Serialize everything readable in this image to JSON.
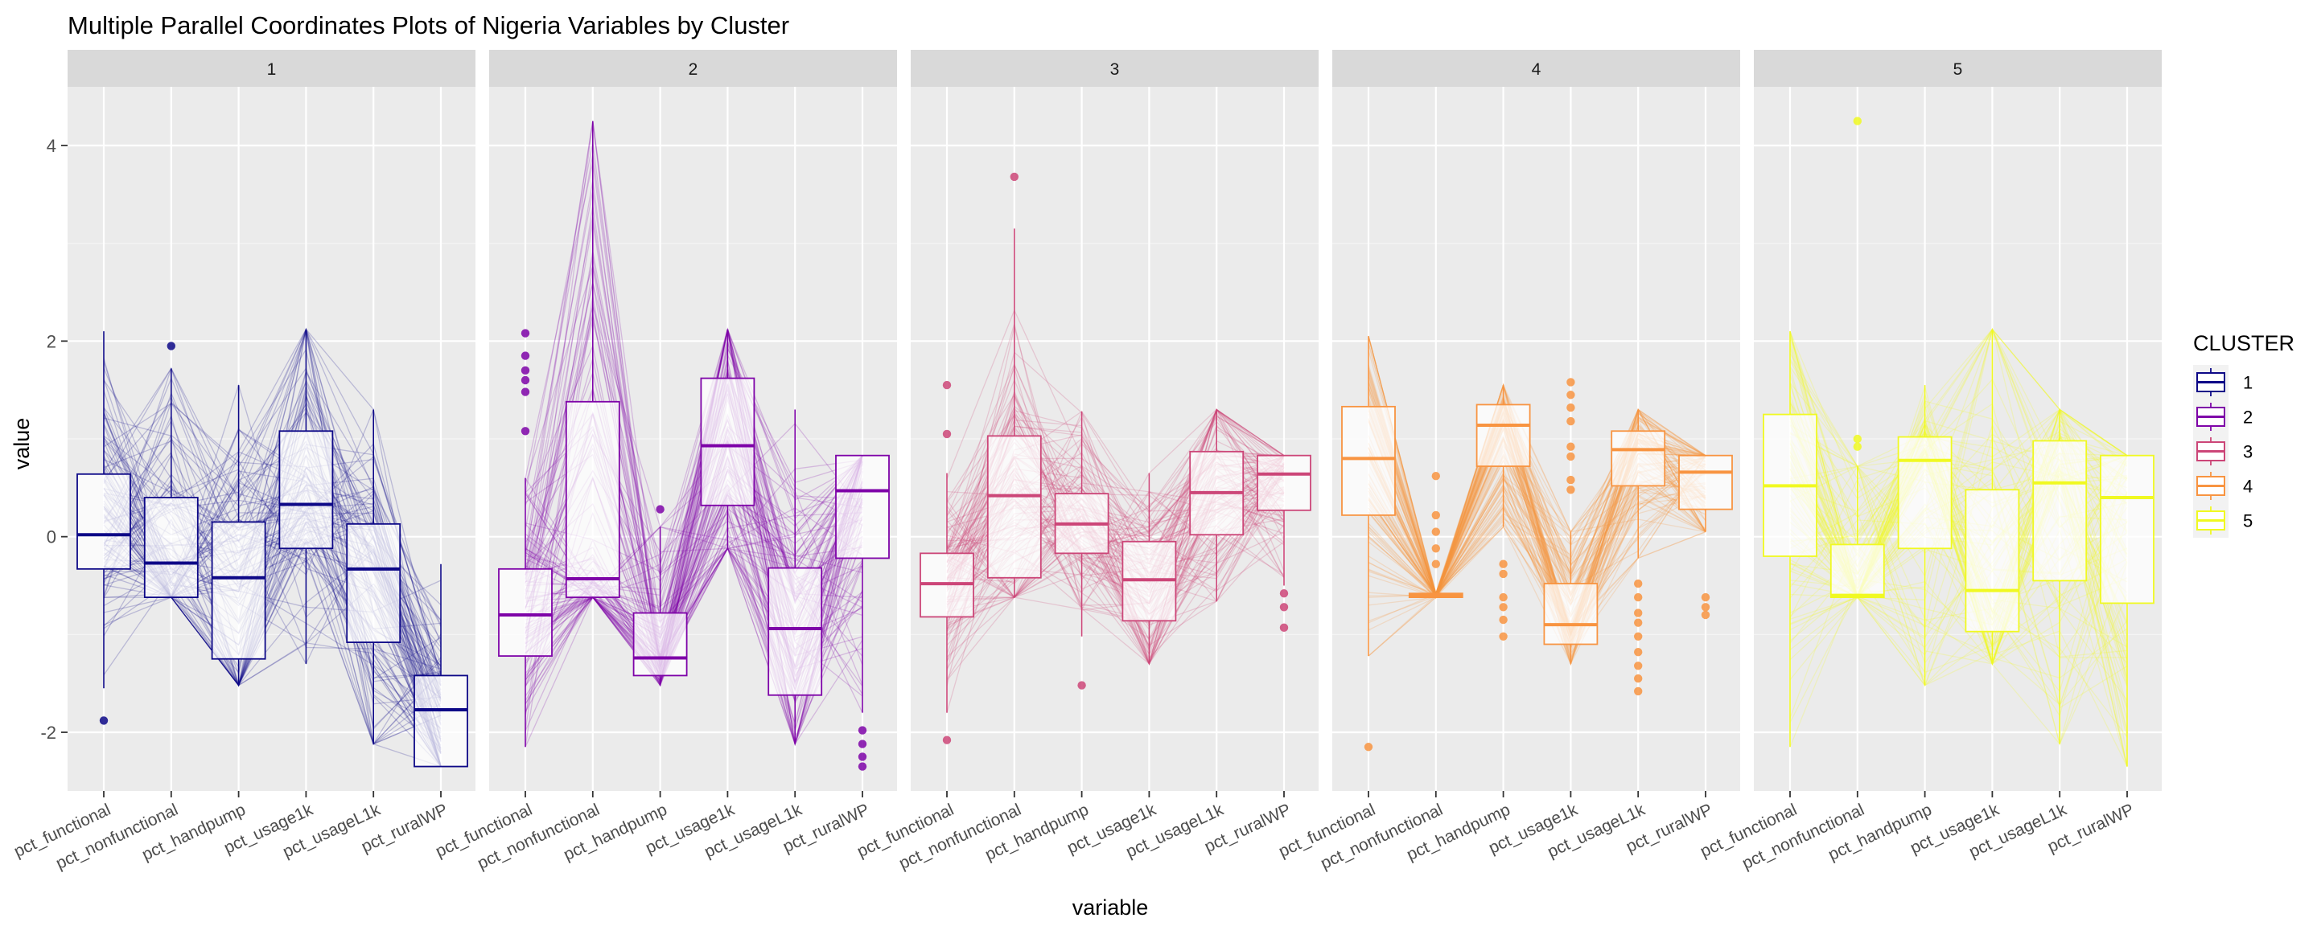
{
  "chart_data": {
    "type": "parallel-coordinates",
    "title": "Multiple Parallel Coordinates Plots of Nigeria Variables by Cluster",
    "xlabel": "variable",
    "ylabel": "value",
    "ylim": [
      -2.6,
      4.6
    ],
    "yticks": [
      -2,
      0,
      2,
      4
    ],
    "ytick_labels": [
      "-2",
      "0",
      "2",
      "4"
    ],
    "grid": true,
    "legend": {
      "title": "CLUSTER",
      "position": "right",
      "entries": [
        "1",
        "2",
        "3",
        "4",
        "5"
      ]
    },
    "variables": [
      "pct_functional",
      "pct_nonfunctional",
      "pct_handpump",
      "pct_usage1k",
      "pct_usageL1k",
      "pct_ruralWP"
    ],
    "facets": [
      {
        "label": "1",
        "color": "#0D0887",
        "boxes": [
          {
            "q1": -0.33,
            "median": 0.02,
            "q3": 0.64,
            "lo": -1.55,
            "hi": 2.1
          },
          {
            "q1": -0.62,
            "median": -0.27,
            "q3": 0.4,
            "lo": -0.62,
            "hi": 1.72
          },
          {
            "q1": -1.25,
            "median": -0.42,
            "q3": 0.15,
            "lo": -1.52,
            "hi": 1.55
          },
          {
            "q1": -0.12,
            "median": 0.33,
            "q3": 1.08,
            "lo": -1.3,
            "hi": 2.12
          },
          {
            "q1": -1.08,
            "median": -0.33,
            "q3": 0.13,
            "lo": -2.12,
            "hi": 1.3
          },
          {
            "q1": -2.35,
            "median": -1.77,
            "q3": -1.42,
            "lo": -2.35,
            "hi": -0.28
          }
        ],
        "outliers": [
          [
            0,
            -1.88
          ],
          [
            1,
            1.95
          ]
        ]
      },
      {
        "label": "2",
        "color": "#7E03A8",
        "boxes": [
          {
            "q1": -1.22,
            "median": -0.8,
            "q3": -0.33,
            "lo": -2.15,
            "hi": 0.6
          },
          {
            "q1": -0.62,
            "median": -0.43,
            "q3": 1.38,
            "lo": -0.62,
            "hi": 4.25
          },
          {
            "q1": -1.42,
            "median": -1.24,
            "q3": -0.78,
            "lo": -1.52,
            "hi": 0.1
          },
          {
            "q1": 0.32,
            "median": 0.93,
            "q3": 1.62,
            "lo": -0.12,
            "hi": 2.12
          },
          {
            "q1": -1.62,
            "median": -0.94,
            "q3": -0.32,
            "lo": -2.12,
            "hi": 1.3
          },
          {
            "q1": -0.22,
            "median": 0.47,
            "q3": 0.83,
            "lo": -1.8,
            "hi": 0.83
          }
        ],
        "outliers": [
          [
            0,
            2.08
          ],
          [
            0,
            1.85
          ],
          [
            0,
            1.7
          ],
          [
            0,
            1.6
          ],
          [
            0,
            1.48
          ],
          [
            0,
            1.08
          ],
          [
            2,
            0.28
          ],
          [
            5,
            -2.12
          ],
          [
            5,
            -2.25
          ],
          [
            5,
            -2.35
          ],
          [
            5,
            -1.98
          ]
        ]
      },
      {
        "label": "3",
        "color": "#CC4678",
        "boxes": [
          {
            "q1": -0.82,
            "median": -0.48,
            "q3": -0.17,
            "lo": -1.8,
            "hi": 0.65
          },
          {
            "q1": -0.42,
            "median": 0.42,
            "q3": 1.03,
            "lo": -0.62,
            "hi": 3.15
          },
          {
            "q1": -0.17,
            "median": 0.13,
            "q3": 0.44,
            "lo": -1.02,
            "hi": 1.28
          },
          {
            "q1": -0.86,
            "median": -0.44,
            "q3": -0.05,
            "lo": -1.3,
            "hi": 0.65
          },
          {
            "q1": 0.02,
            "median": 0.45,
            "q3": 0.87,
            "lo": -0.66,
            "hi": 1.3
          },
          {
            "q1": 0.27,
            "median": 0.64,
            "q3": 0.83,
            "lo": -0.5,
            "hi": 0.83
          }
        ],
        "outliers": [
          [
            0,
            1.55
          ],
          [
            0,
            1.05
          ],
          [
            0,
            -2.08
          ],
          [
            1,
            3.68
          ],
          [
            2,
            -1.52
          ],
          [
            5,
            -0.58
          ],
          [
            5,
            -0.72
          ],
          [
            5,
            -0.93
          ]
        ]
      },
      {
        "label": "4",
        "color": "#F89441",
        "boxes": [
          {
            "q1": 0.22,
            "median": 0.8,
            "q3": 1.33,
            "lo": -1.22,
            "hi": 2.05
          },
          {
            "q1": -0.62,
            "median": -0.6,
            "q3": -0.58,
            "lo": -0.62,
            "hi": -0.58
          },
          {
            "q1": 0.72,
            "median": 1.14,
            "q3": 1.35,
            "lo": 0.1,
            "hi": 1.55
          },
          {
            "q1": -1.1,
            "median": -0.9,
            "q3": -0.48,
            "lo": -1.3,
            "hi": 0.05
          },
          {
            "q1": 0.52,
            "median": 0.89,
            "q3": 1.08,
            "lo": -0.22,
            "hi": 1.3
          },
          {
            "q1": 0.28,
            "median": 0.66,
            "q3": 0.83,
            "lo": 0.05,
            "hi": 0.83
          }
        ],
        "outliers": [
          [
            0,
            -2.15
          ],
          [
            1,
            0.62
          ],
          [
            1,
            0.22
          ],
          [
            1,
            0.05
          ],
          [
            1,
            -0.12
          ],
          [
            1,
            -0.28
          ],
          [
            2,
            -0.28
          ],
          [
            2,
            -0.38
          ],
          [
            2,
            -0.62
          ],
          [
            2,
            -0.72
          ],
          [
            2,
            -0.85
          ],
          [
            2,
            -1.02
          ],
          [
            3,
            1.58
          ],
          [
            3,
            1.45
          ],
          [
            3,
            1.32
          ],
          [
            3,
            1.18
          ],
          [
            3,
            0.92
          ],
          [
            3,
            0.82
          ],
          [
            3,
            0.58
          ],
          [
            3,
            0.48
          ],
          [
            4,
            -0.48
          ],
          [
            4,
            -0.62
          ],
          [
            4,
            -0.78
          ],
          [
            4,
            -0.88
          ],
          [
            4,
            -1.02
          ],
          [
            4,
            -1.18
          ],
          [
            4,
            -1.32
          ],
          [
            4,
            -1.45
          ],
          [
            4,
            -1.58
          ],
          [
            5,
            -0.62
          ],
          [
            5,
            -0.72
          ],
          [
            5,
            -0.8
          ]
        ]
      },
      {
        "label": "5",
        "color": "#F0F921",
        "boxes": [
          {
            "q1": -0.2,
            "median": 0.52,
            "q3": 1.25,
            "lo": -2.15,
            "hi": 2.1
          },
          {
            "q1": -0.62,
            "median": -0.6,
            "q3": -0.08,
            "lo": -0.62,
            "hi": 0.72
          },
          {
            "q1": -0.12,
            "median": 0.78,
            "q3": 1.02,
            "lo": -1.52,
            "hi": 1.55
          },
          {
            "q1": -0.97,
            "median": -0.55,
            "q3": 0.48,
            "lo": -1.3,
            "hi": 2.12
          },
          {
            "q1": -0.45,
            "median": 0.55,
            "q3": 0.98,
            "lo": -2.12,
            "hi": 1.3
          },
          {
            "q1": -0.68,
            "median": 0.4,
            "q3": 0.83,
            "lo": -2.35,
            "hi": 0.83
          }
        ],
        "outliers": [
          [
            1,
            4.25
          ],
          [
            1,
            1.0
          ],
          [
            1,
            0.92
          ]
        ]
      }
    ]
  }
}
